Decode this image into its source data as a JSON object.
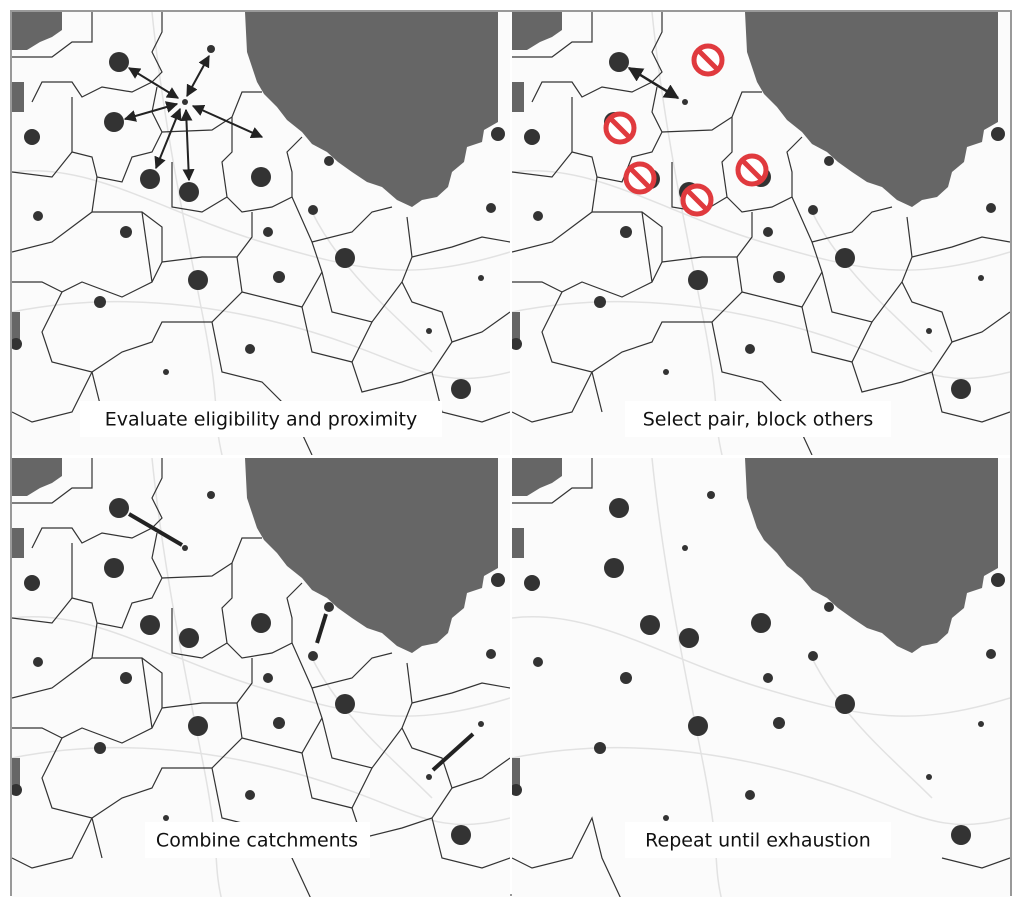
{
  "panels": [
    {
      "caption": "Evaluate eligibility and proximity"
    },
    {
      "caption": "Select pair, block others"
    },
    {
      "caption": "Combine catchments"
    },
    {
      "caption": "Repeat until exhaustion"
    }
  ]
}
